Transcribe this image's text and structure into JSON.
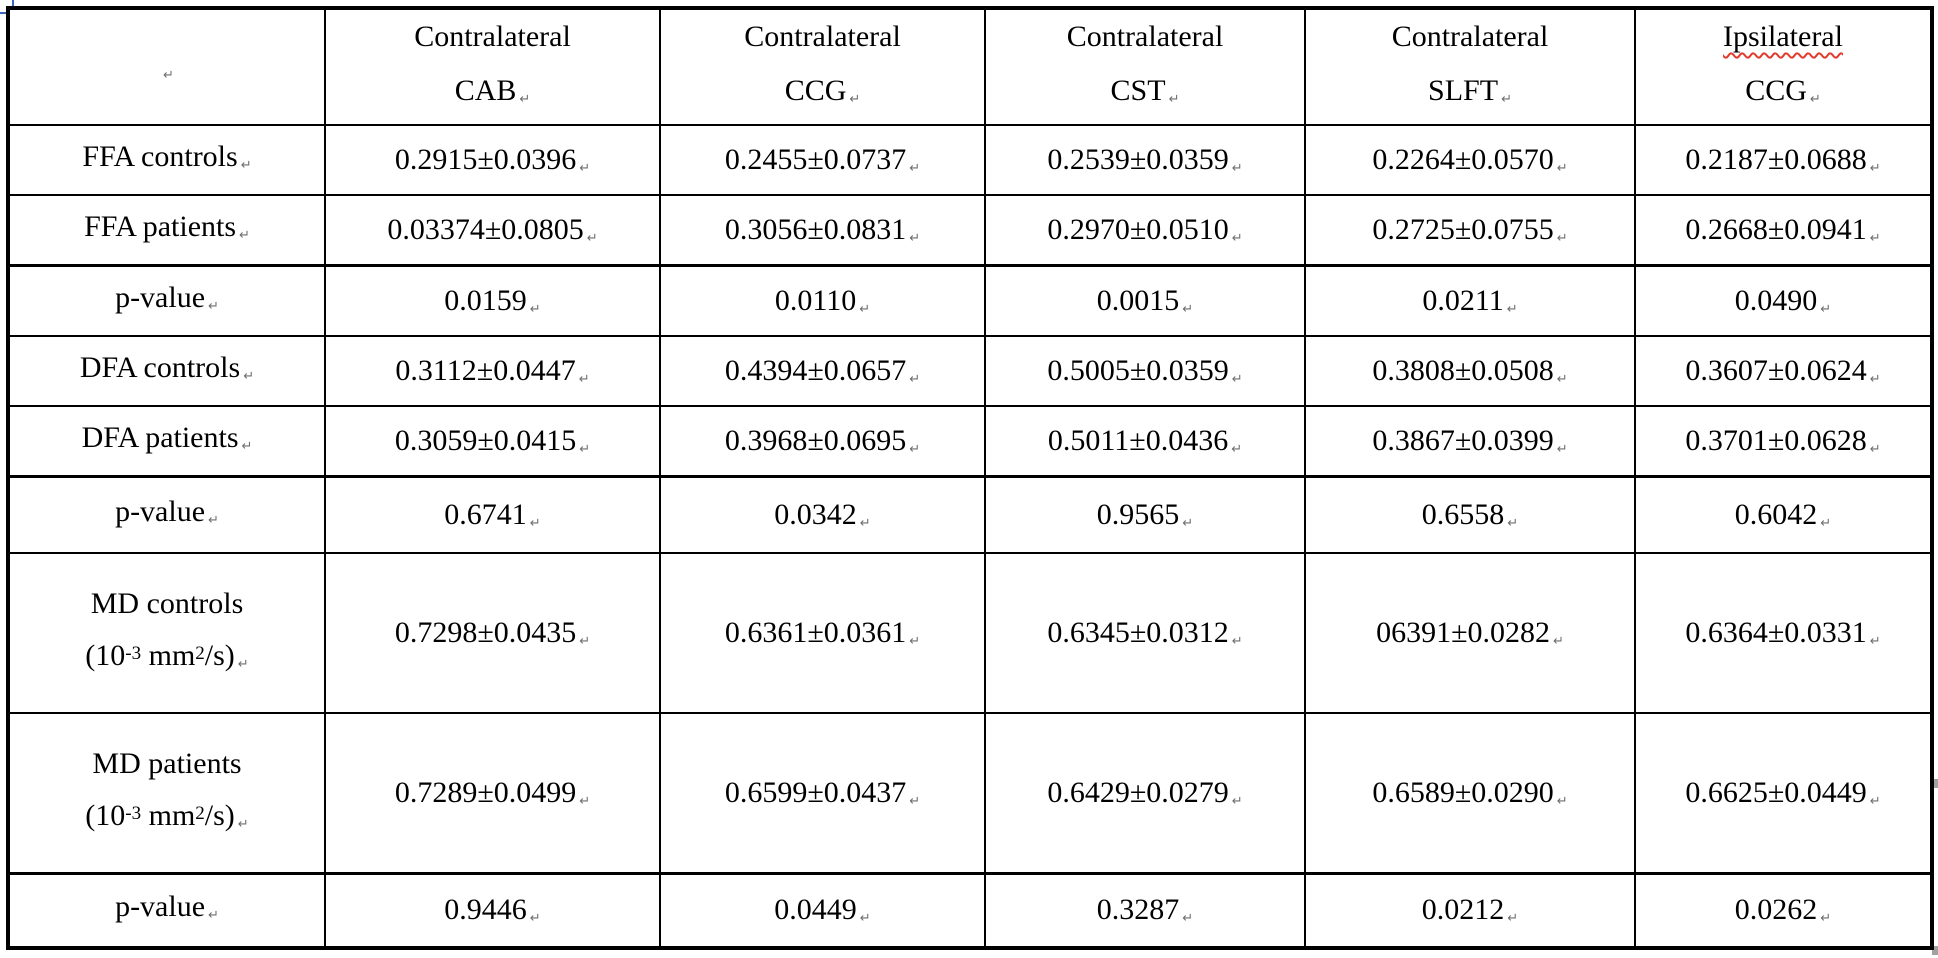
{
  "table": {
    "paragraph_mark": "↵",
    "border_color": "#000000",
    "misspell_underline_color": "#e23b2e",
    "columns": [
      {
        "line1": "Contralateral",
        "line2": "CAB",
        "misspelled": false
      },
      {
        "line1": "Contralateral",
        "line2": "CCG",
        "misspelled": false
      },
      {
        "line1": "Contralateral",
        "line2": "CST",
        "misspelled": false
      },
      {
        "line1": "Contralateral",
        "line2": "SLFT",
        "misspelled": false
      },
      {
        "line1": "Ipsilateral",
        "line2": "CCG",
        "misspelled": true
      }
    ],
    "rows": [
      {
        "label": "FFA controls",
        "pvalue": false,
        "unit": null,
        "values": [
          "0.2915±0.0396",
          "0.2455±0.0737",
          "0.2539±0.0359",
          "0.2264±0.0570",
          "0.2187±0.0688"
        ],
        "bold": [
          false,
          false,
          false,
          false,
          false
        ]
      },
      {
        "label": "FFA patients",
        "pvalue": false,
        "unit": null,
        "values": [
          "0.03374±0.0805",
          "0.3056±0.0831",
          "0.2970±0.0510",
          "0.2725±0.0755",
          "0.2668±0.0941"
        ],
        "bold": [
          false,
          false,
          false,
          false,
          false
        ]
      },
      {
        "label": "p-value",
        "pvalue": true,
        "unit": null,
        "values": [
          "0.0159",
          "0.0110",
          "0.0015",
          "0.0211",
          "0.0490"
        ],
        "bold": [
          true,
          true,
          true,
          true,
          true
        ]
      },
      {
        "label": "DFA controls",
        "pvalue": false,
        "unit": null,
        "values": [
          "0.3112±0.0447",
          "0.4394±0.0657",
          "0.5005±0.0359",
          "0.3808±0.0508",
          "0.3607±0.0624"
        ],
        "bold": [
          false,
          false,
          false,
          false,
          false
        ]
      },
      {
        "label": "DFA patients",
        "pvalue": false,
        "unit": null,
        "values": [
          "0.3059±0.0415",
          "0.3968±0.0695",
          "0.5011±0.0436",
          "0.3867±0.0399",
          "0.3701±0.0628"
        ],
        "bold": [
          false,
          false,
          false,
          false,
          false
        ]
      },
      {
        "label": "p-value",
        "pvalue": true,
        "unit": null,
        "values": [
          "0.6741",
          "0.0342",
          "0.9565",
          "0.6558",
          "0.6042"
        ],
        "bold": [
          false,
          true,
          false,
          false,
          false
        ]
      },
      {
        "label": "MD controls",
        "pvalue": false,
        "unit": {
          "pre": "(10",
          "sup1": "-3",
          "mid": " mm",
          "sup2": "2",
          "post": "/s)"
        },
        "values": [
          "0.7298±0.0435",
          "0.6361±0.0361",
          "0.6345±0.0312",
          "06391±0.0282",
          "0.6364±0.0331"
        ],
        "bold": [
          false,
          false,
          false,
          false,
          false
        ]
      },
      {
        "label": "MD patients",
        "pvalue": false,
        "unit": {
          "pre": "(10",
          "sup1": "-3",
          "mid": " mm",
          "sup2": "2",
          "post": "/s)"
        },
        "values": [
          "0.7289±0.0499",
          "0.6599±0.0437",
          "0.6429±0.0279",
          "0.6589±0.0290",
          "0.6625±0.0449"
        ],
        "bold": [
          false,
          false,
          false,
          false,
          false
        ]
      },
      {
        "label": "p-value",
        "pvalue": true,
        "unit": null,
        "values": [
          "0.9446",
          "0.0449",
          "0.3287",
          "0.0212",
          "0.0262"
        ],
        "bold": [
          false,
          true,
          false,
          true,
          true
        ]
      }
    ]
  }
}
